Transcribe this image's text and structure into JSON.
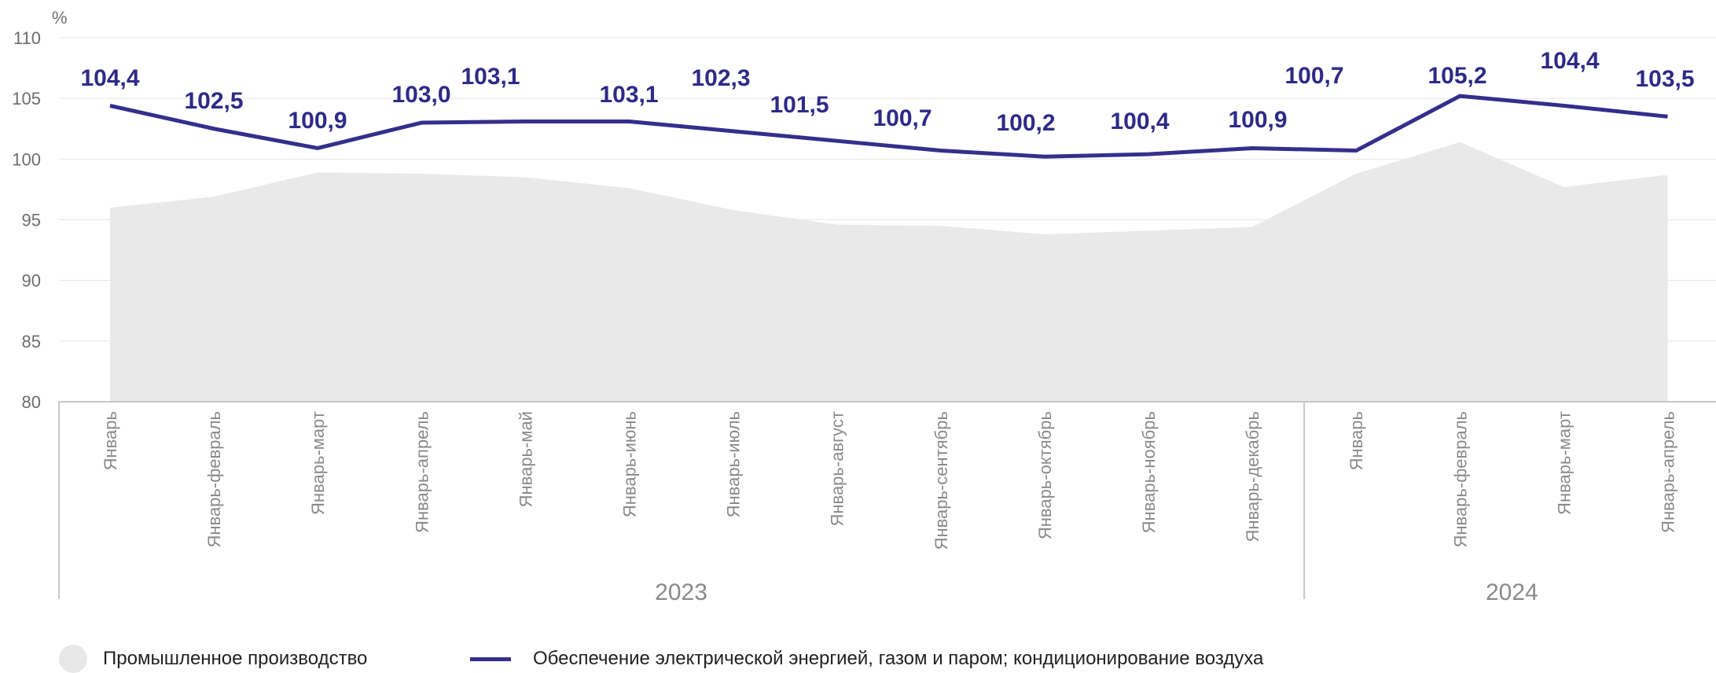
{
  "chart_data": {
    "type": "line",
    "unit_label": "%",
    "categories": [
      "Январь",
      "Январь-февраль",
      "Январь-март",
      "Январь-апрель",
      "Январь-май",
      "Январь-июнь",
      "Январь-июль",
      "Январь-август",
      "Январь-сентябрь",
      "Январь-октябрь",
      "Январь-ноябрь",
      "Январь-декабрь",
      "Январь",
      "Январь-февраль",
      "Январь-март",
      "Январь-апрель"
    ],
    "groups": [
      {
        "label": "2023",
        "count": 12
      },
      {
        "label": "2024",
        "count": 4
      }
    ],
    "ylim": [
      80,
      110
    ],
    "yticks": [
      80,
      85,
      90,
      95,
      100,
      105,
      110
    ],
    "series": [
      {
        "name": "Промышленное производство",
        "type": "area",
        "color": "#e9e9e9",
        "values": [
          96.0,
          96.9,
          98.9,
          98.8,
          98.5,
          97.6,
          95.8,
          94.6,
          94.5,
          93.8,
          94.1,
          94.4,
          98.8,
          101.4,
          97.7,
          98.7
        ]
      },
      {
        "name": "Обеспечение электрической энергией, газом  и паром; кондиционирование воздуха",
        "type": "line",
        "color": "#342f8c",
        "values": [
          104.4,
          102.5,
          100.9,
          103.0,
          103.1,
          103.1,
          102.3,
          101.5,
          100.7,
          100.2,
          100.4,
          100.9,
          100.7,
          105.2,
          104.4,
          103.5
        ],
        "labels": [
          "104,4",
          "102,5",
          "100,9",
          "103,0",
          "103,1",
          "103,1",
          "102,3",
          "101,5",
          "100,7",
          "100,2",
          "100,4",
          "100,9",
          "100,7",
          "105,2",
          "104,4",
          "103,5"
        ]
      }
    ],
    "grid": true,
    "legend_position": "bottom-left"
  }
}
